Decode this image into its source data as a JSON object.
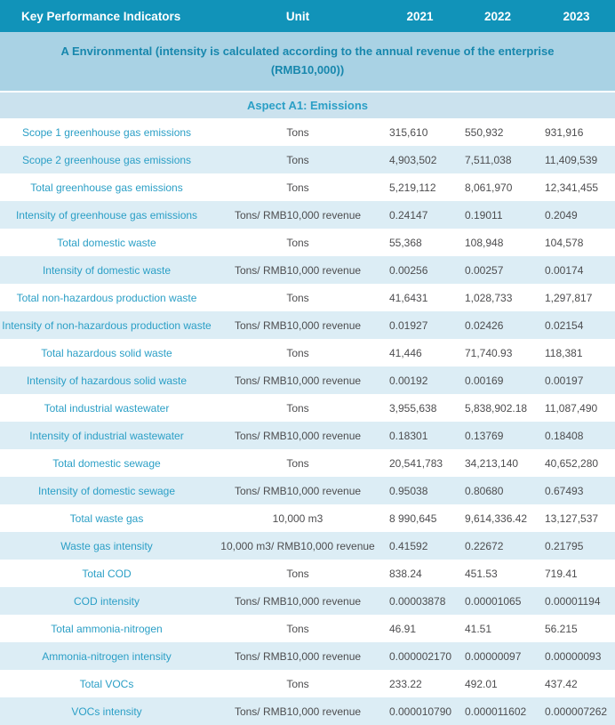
{
  "colors": {
    "header_bg": "#1193B9",
    "header_text": "#FFFFFF",
    "section_bg": "#A9D2E4",
    "section_text": "#1787AD",
    "aspect_bg": "#CBE2EE",
    "accent_teal": "#2B9FC6",
    "row_alt_bg": "#DCEDF5",
    "row_bg": "#FFFFFF",
    "value_text": "#4D4D4F"
  },
  "table": {
    "columns": [
      "Key Performance Indicators",
      "Unit",
      "2021",
      "2022",
      "2023"
    ],
    "section_header": "A Environmental (intensity is calculated according to the annual revenue of the enterprise (RMB10,000))",
    "aspect_header": "Aspect A1: Emissions",
    "rows": [
      {
        "kpi": "Scope 1 greenhouse gas emissions",
        "unit": "Tons",
        "y2021": "315,610",
        "y2022": "550,932",
        "y2023": "931,916"
      },
      {
        "kpi": "Scope 2 greenhouse gas emissions",
        "unit": "Tons",
        "y2021": "4,903,502",
        "y2022": "7,511,038",
        "y2023": "11,409,539"
      },
      {
        "kpi": "Total greenhouse gas emissions",
        "unit": "Tons",
        "y2021": "5,219,112",
        "y2022": "8,061,970",
        "y2023": "12,341,455"
      },
      {
        "kpi": "Intensity of greenhouse gas emissions",
        "unit": "Tons/ RMB10,000 revenue",
        "y2021": "0.24147",
        "y2022": "0.19011",
        "y2023": "0.2049"
      },
      {
        "kpi": "Total domestic waste",
        "unit": "Tons",
        "y2021": "55,368",
        "y2022": "108,948",
        "y2023": "104,578"
      },
      {
        "kpi": "Intensity of domestic waste",
        "unit": "Tons/ RMB10,000 revenue",
        "y2021": "0.00256",
        "y2022": "0.00257",
        "y2023": "0.00174"
      },
      {
        "kpi": "Total non-hazardous production waste",
        "unit": "Tons",
        "y2021": "41,6431",
        "y2022": "1,028,733",
        "y2023": "1,297,817"
      },
      {
        "kpi": "Intensity of non-hazardous production waste",
        "unit": "Tons/ RMB10,000 revenue",
        "y2021": "0.01927",
        "y2022": "0.02426",
        "y2023": "0.02154"
      },
      {
        "kpi": "Total hazardous solid waste",
        "unit": "Tons",
        "y2021": "41,446",
        "y2022": "71,740.93",
        "y2023": "118,381"
      },
      {
        "kpi": "Intensity of hazardous solid waste",
        "unit": "Tons/ RMB10,000 revenue",
        "y2021": "0.00192",
        "y2022": "0.00169",
        "y2023": "0.00197"
      },
      {
        "kpi": "Total industrial wastewater",
        "unit": "Tons",
        "y2021": "3,955,638",
        "y2022": "5,838,902.18",
        "y2023": "11,087,490"
      },
      {
        "kpi": "Intensity of industrial wastewater",
        "unit": "Tons/ RMB10,000 revenue",
        "y2021": "0.18301",
        "y2022": "0.13769",
        "y2023": "0.18408"
      },
      {
        "kpi": "Total domestic sewage",
        "unit": "Tons",
        "y2021": "20,541,783",
        "y2022": "34,213,140",
        "y2023": "40,652,280"
      },
      {
        "kpi": "Intensity of domestic sewage",
        "unit": "Tons/ RMB10,000 revenue",
        "y2021": "0.95038",
        "y2022": "0.80680",
        "y2023": "0.67493"
      },
      {
        "kpi": "Total waste gas",
        "unit": "10,000 m3",
        "y2021": "8 990,645",
        "y2022": "9,614,336.42",
        "y2023": "13,127,537"
      },
      {
        "kpi": "Waste gas intensity",
        "unit": "10,000 m3/ RMB10,000 revenue",
        "y2021": "0.41592",
        "y2022": "0.22672",
        "y2023": "0.21795"
      },
      {
        "kpi": "Total COD",
        "unit": "Tons",
        "y2021": "838.24",
        "y2022": "451.53",
        "y2023": "719.41"
      },
      {
        "kpi": "COD intensity",
        "unit": "Tons/ RMB10,000 revenue",
        "y2021": "0.00003878",
        "y2022": "0.00001065",
        "y2023": "0.00001194"
      },
      {
        "kpi": "Total ammonia-nitrogen",
        "unit": "Tons",
        "y2021": "46.91",
        "y2022": "41.51",
        "y2023": "56.215"
      },
      {
        "kpi": "Ammonia-nitrogen intensity",
        "unit": "Tons/ RMB10,000 revenue",
        "y2021": "0.000002170",
        "y2022": "0.00000097",
        "y2023": "0.00000093"
      },
      {
        "kpi": "Total VOCs",
        "unit": "Tons",
        "y2021": "233.22",
        "y2022": "492.01",
        "y2023": "437.42"
      },
      {
        "kpi": "VOCs intensity",
        "unit": "Tons/ RMB10,000 revenue",
        "y2021": "0.000010790",
        "y2022": "0.000011602",
        "y2023": "0.000007262"
      }
    ]
  }
}
